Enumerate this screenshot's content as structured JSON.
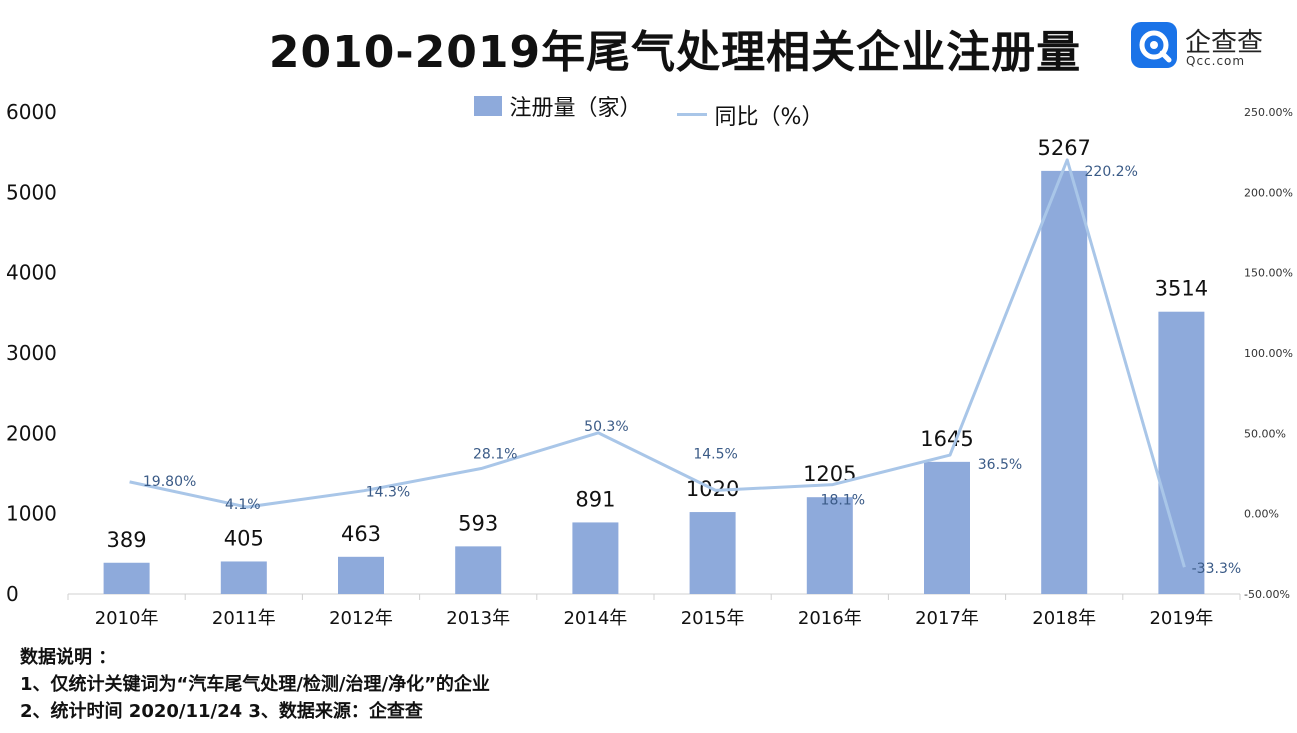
{
  "title": "2010-2019年尾气处理相关企业注册量",
  "logo": {
    "name": "企查查",
    "url": "Qcc.com"
  },
  "chart_data": {
    "type": "bar+line",
    "title": "2010-2019年尾气处理相关企业注册量",
    "categories": [
      "2010年",
      "2011年",
      "2012年",
      "2013年",
      "2014年",
      "2015年",
      "2016年",
      "2017年",
      "2018年",
      "2019年"
    ],
    "series": [
      {
        "name": "注册量（家）",
        "type": "bar",
        "axis": "left",
        "color": "#8eaadb",
        "values": [
          389,
          405,
          463,
          593,
          891,
          1020,
          1205,
          1645,
          5267,
          3514
        ],
        "labels": [
          "389",
          "405",
          "463",
          "593",
          "891",
          "1020",
          "1205",
          "1645",
          "5267",
          "3514"
        ]
      },
      {
        "name": "同比（%）",
        "type": "line",
        "axis": "right",
        "color": "#a9c6e8",
        "values": [
          19.8,
          4.1,
          14.3,
          28.1,
          50.3,
          14.5,
          18.1,
          36.5,
          220.2,
          -33.3
        ],
        "labels": [
          "19.80%",
          "4.1%",
          "14.3%",
          "28.1%",
          "50.3%",
          "14.5%",
          "18.1%",
          "36.5%",
          "220.2%",
          "-33.3%"
        ]
      }
    ],
    "y_left": {
      "range": [
        0,
        6000
      ],
      "ticks": [
        "0",
        "1000",
        "2000",
        "3000",
        "4000",
        "5000",
        "6000"
      ]
    },
    "y_right": {
      "range": [
        -50,
        250
      ],
      "ticks": [
        "-50.00%",
        "0.00%",
        "50.00%",
        "100.00%",
        "150.00%",
        "200.00%",
        "250.00%"
      ]
    },
    "legend_position": "top-center"
  },
  "notes": [
    "数据说明 ：",
    "1、仅统计关键词为“汽车尾气处理/检测/治理/净化”的企业",
    "2、统计时间 2020/11/24   3、数据来源：企查查"
  ]
}
